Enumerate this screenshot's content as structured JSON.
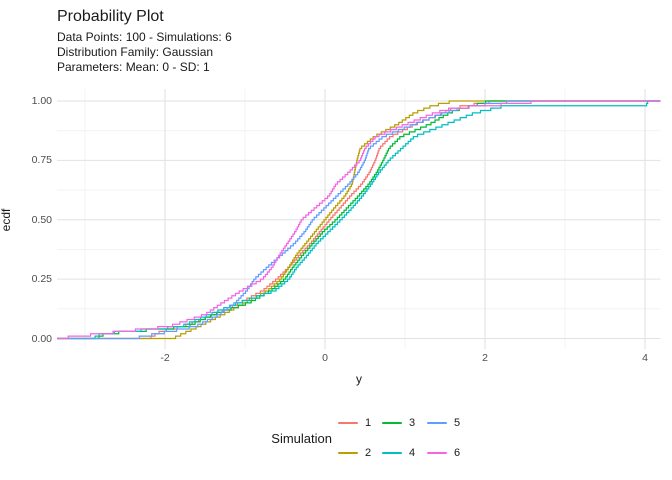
{
  "title": "Probability Plot",
  "subtitle_lines": [
    "Data Points: 100 - Simulations: 6",
    "Distribution Family: Gaussian",
    "Parameters: Mean: 0 - SD: 1"
  ],
  "colors": {
    "background": "#FFFFFF",
    "grid_major": "#E2E2E2",
    "grid_minor": "#F0F0F0",
    "tick_label": "#4D4D4D",
    "text": "#1A1A1A"
  },
  "legend": {
    "title": "Simulation",
    "entries": [
      {
        "label": "1",
        "color": "#F8766D"
      },
      {
        "label": "2",
        "color": "#B79F00"
      },
      {
        "label": "3",
        "color": "#00BA38"
      },
      {
        "label": "4",
        "color": "#00BFC4"
      },
      {
        "label": "5",
        "color": "#619CFF"
      },
      {
        "label": "6",
        "color": "#F564E3"
      }
    ]
  },
  "chart_data": {
    "type": "line",
    "variant": "ecdf_step",
    "title": "Probability Plot",
    "subtitle": "Data Points: 100 - Simulations: 6 | Distribution Family: Gaussian | Parameters: Mean: 0 - SD: 1",
    "xlabel": "y",
    "ylabel": "ecdf",
    "xlim": [
      -3.35,
      4.19
    ],
    "ylim": [
      0,
      1
    ],
    "grid": "major+minor",
    "legend_position": "bottom",
    "legend_title": "Simulation",
    "n_points_per_series": 100,
    "x_ticks": {
      "values": [
        -2,
        0,
        2,
        4
      ],
      "labels": [
        "-2",
        "0",
        "2",
        "4"
      ]
    },
    "x_minor_gridlines": [
      -3,
      -1,
      1,
      3
    ],
    "y_ticks": {
      "values": [
        0,
        0.25,
        0.5,
        0.75,
        1
      ],
      "labels": [
        "0.00",
        "0.25",
        "0.50",
        "0.75",
        "1.00"
      ]
    },
    "y_minor_gridlines": [
      0.125,
      0.375,
      0.625,
      0.875
    ],
    "series": [
      {
        "name": "1",
        "color": "#F8766D",
        "ecdf_quantiles_p_x": [
          [
            0,
            -2.2
          ],
          [
            0.03,
            -2.05
          ],
          [
            0.05,
            -1.78
          ],
          [
            0.1,
            -1.38
          ],
          [
            0.15,
            -1.06
          ],
          [
            0.2,
            -0.78
          ],
          [
            0.25,
            -0.6
          ],
          [
            0.3,
            -0.45
          ],
          [
            0.35,
            -0.32
          ],
          [
            0.4,
            -0.18
          ],
          [
            0.45,
            -0.06
          ],
          [
            0.5,
            0.06
          ],
          [
            0.55,
            0.19
          ],
          [
            0.6,
            0.32
          ],
          [
            0.65,
            0.46
          ],
          [
            0.7,
            0.56
          ],
          [
            0.75,
            0.63
          ],
          [
            0.8,
            0.68
          ],
          [
            0.85,
            0.82
          ],
          [
            0.9,
            1.12
          ],
          [
            0.95,
            1.48
          ],
          [
            0.97,
            1.6
          ],
          [
            0.99,
            1.95
          ],
          [
            1,
            2.15
          ]
        ]
      },
      {
        "name": "2",
        "color": "#B79F00",
        "ecdf_quantiles_p_x": [
          [
            0,
            -1.9
          ],
          [
            0.05,
            -1.58
          ],
          [
            0.1,
            -1.28
          ],
          [
            0.15,
            -1.0
          ],
          [
            0.2,
            -0.72
          ],
          [
            0.25,
            -0.55
          ],
          [
            0.3,
            -0.45
          ],
          [
            0.35,
            -0.36
          ],
          [
            0.4,
            -0.24
          ],
          [
            0.45,
            -0.12
          ],
          [
            0.5,
            0.0
          ],
          [
            0.55,
            0.12
          ],
          [
            0.6,
            0.25
          ],
          [
            0.65,
            0.34
          ],
          [
            0.7,
            0.37
          ],
          [
            0.75,
            0.4
          ],
          [
            0.8,
            0.44
          ],
          [
            0.85,
            0.62
          ],
          [
            0.9,
            0.9
          ],
          [
            0.95,
            1.12
          ],
          [
            0.98,
            1.35
          ],
          [
            1,
            1.62
          ]
        ]
      },
      {
        "name": "3",
        "color": "#00BA38",
        "ecdf_quantiles_p_x": [
          [
            0,
            -2.85
          ],
          [
            0.02,
            -2.75
          ],
          [
            0.05,
            -1.72
          ],
          [
            0.1,
            -1.4
          ],
          [
            0.15,
            -0.95
          ],
          [
            0.2,
            -0.68
          ],
          [
            0.25,
            -0.5
          ],
          [
            0.3,
            -0.4
          ],
          [
            0.35,
            -0.28
          ],
          [
            0.4,
            -0.15
          ],
          [
            0.45,
            -0.02
          ],
          [
            0.5,
            0.14
          ],
          [
            0.55,
            0.28
          ],
          [
            0.6,
            0.42
          ],
          [
            0.65,
            0.55
          ],
          [
            0.7,
            0.65
          ],
          [
            0.75,
            0.73
          ],
          [
            0.8,
            0.8
          ],
          [
            0.85,
            0.95
          ],
          [
            0.9,
            1.3
          ],
          [
            0.93,
            1.45
          ],
          [
            0.96,
            1.62
          ],
          [
            0.98,
            1.85
          ],
          [
            1,
            2.06
          ]
        ]
      },
      {
        "name": "4",
        "color": "#00BFC4",
        "ecdf_quantiles_p_x": [
          [
            0,
            -2.9
          ],
          [
            0.02,
            -2.8
          ],
          [
            0.05,
            -1.8
          ],
          [
            0.1,
            -1.45
          ],
          [
            0.15,
            -1.08
          ],
          [
            0.2,
            -0.63
          ],
          [
            0.25,
            -0.45
          ],
          [
            0.3,
            -0.35
          ],
          [
            0.35,
            -0.22
          ],
          [
            0.4,
            -0.1
          ],
          [
            0.45,
            0.05
          ],
          [
            0.5,
            0.2
          ],
          [
            0.55,
            0.34
          ],
          [
            0.6,
            0.47
          ],
          [
            0.65,
            0.58
          ],
          [
            0.7,
            0.68
          ],
          [
            0.75,
            0.8
          ],
          [
            0.8,
            0.96
          ],
          [
            0.85,
            1.12
          ],
          [
            0.9,
            1.5
          ],
          [
            0.95,
            1.88
          ],
          [
            0.975,
            2.2
          ],
          [
            0.983,
            2.25
          ],
          [
            0.985,
            4.02
          ],
          [
            1,
            4.04
          ]
        ]
      },
      {
        "name": "5",
        "color": "#619CFF",
        "ecdf_quantiles_p_x": [
          [
            0,
            -2.4
          ],
          [
            0.05,
            -1.62
          ],
          [
            0.1,
            -1.32
          ],
          [
            0.15,
            -1.12
          ],
          [
            0.2,
            -0.98
          ],
          [
            0.25,
            -0.88
          ],
          [
            0.3,
            -0.72
          ],
          [
            0.35,
            -0.55
          ],
          [
            0.4,
            -0.38
          ],
          [
            0.45,
            -0.25
          ],
          [
            0.5,
            -0.15
          ],
          [
            0.55,
            0.0
          ],
          [
            0.6,
            0.15
          ],
          [
            0.65,
            0.3
          ],
          [
            0.7,
            0.42
          ],
          [
            0.75,
            0.5
          ],
          [
            0.8,
            0.55
          ],
          [
            0.85,
            0.73
          ],
          [
            0.9,
            1.1
          ],
          [
            0.95,
            1.5
          ],
          [
            0.97,
            1.7
          ],
          [
            0.99,
            2.1
          ],
          [
            1,
            2.44
          ]
        ]
      },
      {
        "name": "6",
        "color": "#F564E3",
        "ecdf_quantiles_p_x": [
          [
            0,
            -3.35
          ],
          [
            0.05,
            -1.95
          ],
          [
            0.1,
            -1.5
          ],
          [
            0.15,
            -1.28
          ],
          [
            0.2,
            -1.05
          ],
          [
            0.25,
            -0.78
          ],
          [
            0.3,
            -0.66
          ],
          [
            0.35,
            -0.57
          ],
          [
            0.4,
            -0.47
          ],
          [
            0.45,
            -0.37
          ],
          [
            0.5,
            -0.29
          ],
          [
            0.55,
            -0.12
          ],
          [
            0.6,
            0.05
          ],
          [
            0.65,
            0.14
          ],
          [
            0.7,
            0.3
          ],
          [
            0.75,
            0.44
          ],
          [
            0.8,
            0.5
          ],
          [
            0.85,
            0.64
          ],
          [
            0.9,
            1.0
          ],
          [
            0.95,
            1.38
          ],
          [
            0.97,
            1.6
          ],
          [
            0.99,
            2.4
          ],
          [
            1,
            2.75
          ]
        ]
      }
    ]
  }
}
